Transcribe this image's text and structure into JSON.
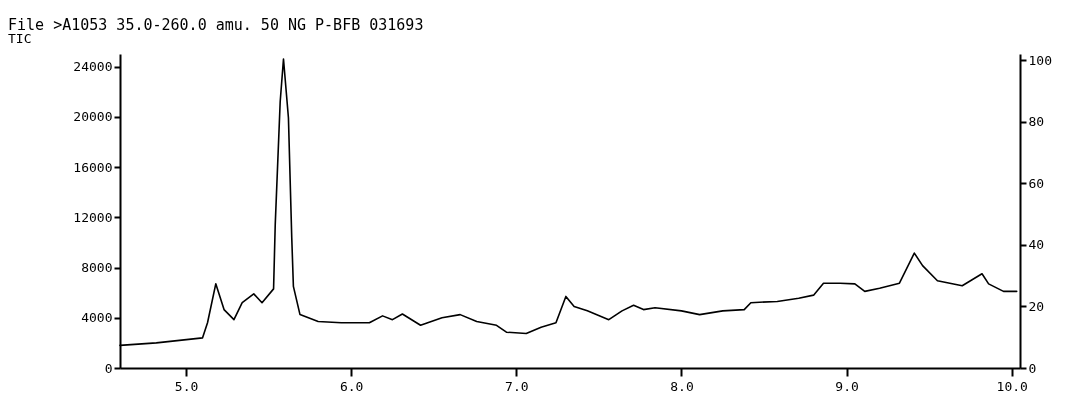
{
  "chart_data": {
    "type": "line",
    "title": "File >A1053   35.0-260.0 amu.  50 NG P-BFB          031693",
    "subtitle": "TIC",
    "x": [
      4.6,
      4.82,
      5.1,
      5.13,
      5.18,
      5.23,
      5.29,
      5.34,
      5.41,
      5.46,
      5.53,
      5.54,
      5.57,
      5.59,
      5.62,
      5.64,
      5.65,
      5.69,
      5.8,
      5.94,
      6.11,
      6.19,
      6.25,
      6.31,
      6.42,
      6.55,
      6.66,
      6.76,
      6.88,
      6.94,
      7.06,
      7.15,
      7.24,
      7.3,
      7.35,
      7.43,
      7.56,
      7.64,
      7.71,
      7.77,
      7.84,
      8.0,
      8.11,
      8.25,
      8.38,
      8.42,
      8.58,
      8.71,
      8.8,
      8.86,
      8.96,
      9.05,
      9.11,
      9.2,
      9.32,
      9.41,
      9.46,
      9.55,
      9.7,
      9.82,
      9.86,
      9.95,
      10.03
    ],
    "series": [
      {
        "color": "#000000",
        "values": [
          1800,
          2000,
          2400,
          3600,
          6700,
          4650,
          3850,
          5200,
          5900,
          5200,
          6300,
          11400,
          21200,
          24600,
          19900,
          10400,
          6500,
          4250,
          3700,
          3600,
          3600,
          4150,
          3850,
          4300,
          3400,
          4000,
          4250,
          3700,
          3400,
          2850,
          2750,
          3250,
          3600,
          5700,
          4900,
          4550,
          3850,
          4550,
          5000,
          4650,
          4800,
          4550,
          4250,
          4550,
          4650,
          5200,
          5300,
          5550,
          5800,
          6750,
          6750,
          6700,
          6100,
          6350,
          6750,
          9150,
          8150,
          6950,
          6550,
          7500,
          6700,
          6100,
          6100
        ]
      }
    ],
    "xlim": [
      4.6,
      10.05
    ],
    "xticks": [
      {
        "value": 5,
        "label": "5.0"
      },
      {
        "value": 6,
        "label": "6.0"
      },
      {
        "value": 7,
        "label": "7.0"
      },
      {
        "value": 8,
        "label": "8.0"
      },
      {
        "value": 9,
        "label": "9.0"
      },
      {
        "value": 10,
        "label": "10.0"
      }
    ],
    "ylim": [
      0,
      25000
    ],
    "yticks": [
      0,
      4000,
      8000,
      12000,
      16000,
      20000,
      24000
    ],
    "y2lim": [
      0,
      102
    ],
    "y2ticks": [
      0,
      20,
      40,
      60,
      80,
      100
    ],
    "line_style": "solid",
    "marker": "none",
    "grid": false
  }
}
